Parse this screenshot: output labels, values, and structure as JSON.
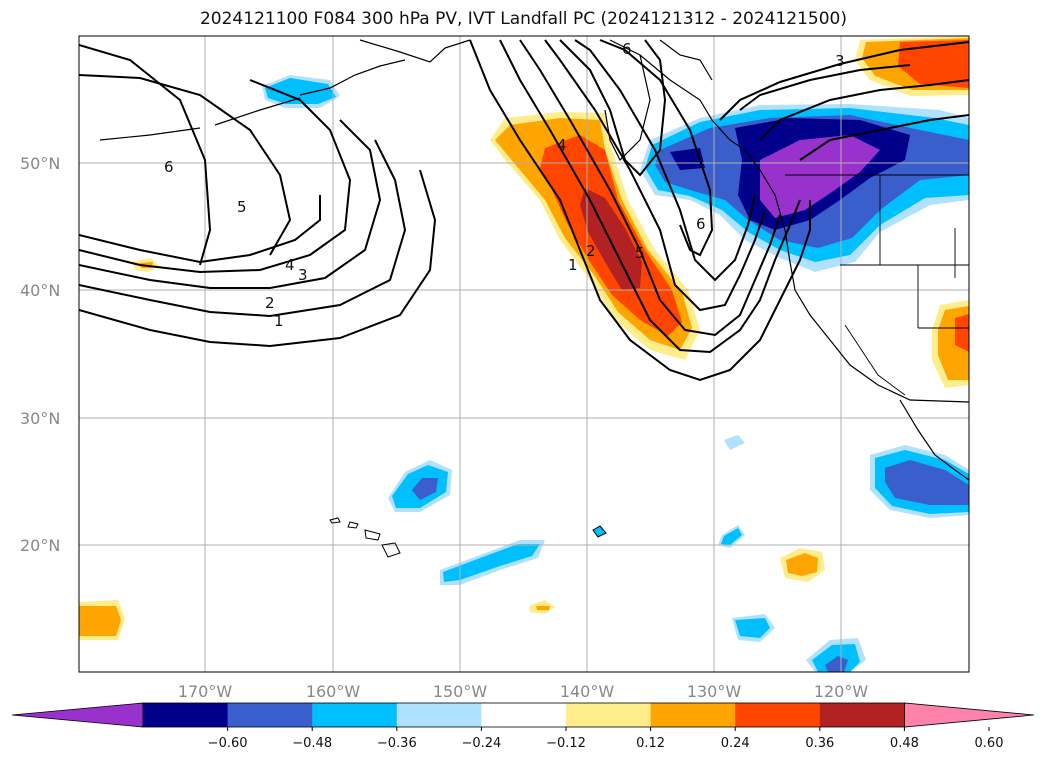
{
  "title": "2024121100 F084 300 hPa PV, IVT Landfall PC (2024121312 - 2024121500)",
  "lat_labels": [
    "50°N",
    "40°N",
    "30°N",
    "20°N"
  ],
  "lon_labels": [
    "170°W",
    "160°W",
    "150°W",
    "140°W",
    "130°W",
    "120°W"
  ],
  "colorbar": {
    "colors": [
      "#9932cc",
      "#00008b",
      "#3a5fcd",
      "#00bfff",
      "#b0e2ff",
      "#ffffff",
      "#ffec8b",
      "#ffa500",
      "#ff4500",
      "#b22222",
      "#ff82ab"
    ],
    "ticks": [
      "−0.60",
      "−0.48",
      "−0.36",
      "−0.24",
      "−0.12",
      "0.12",
      "0.24",
      "0.36",
      "0.48",
      "0.60"
    ]
  },
  "contour_labels": [
    "6",
    "5",
    "4",
    "3",
    "2",
    "1",
    "6",
    "4",
    "2",
    "1",
    "5",
    "6",
    "3"
  ]
}
